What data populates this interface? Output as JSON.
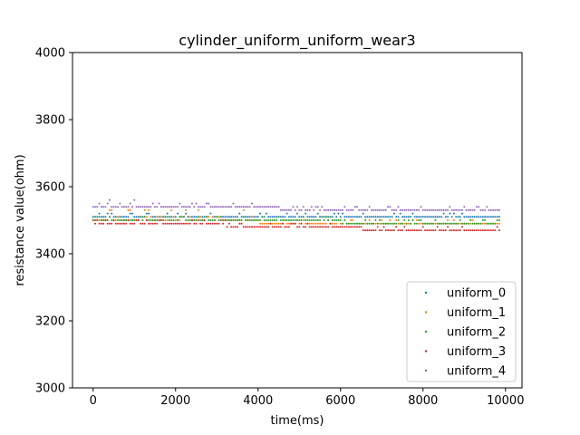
{
  "chart_data": {
    "type": "scatter",
    "title": "cylinder_uniform_uniform_wear3",
    "xlabel": "time(ms)",
    "ylabel": "resistance value(ohm)",
    "xlim": [
      -500,
      10400
    ],
    "ylim": [
      3000,
      4000
    ],
    "xticks": [
      0,
      2000,
      4000,
      6000,
      8000,
      10000
    ],
    "yticks": [
      3000,
      3200,
      3400,
      3600,
      3800,
      4000
    ],
    "grid": false,
    "legend_position": "lower right",
    "x_range": [
      0,
      9850
    ],
    "sample_step_ms": 50,
    "series": [
      {
        "name": "uniform_0",
        "color": "#1f77b4",
        "segments": [
          {
            "x_from": 0,
            "x_to": 9850,
            "values": [
              3510,
              3520
            ]
          }
        ]
      },
      {
        "name": "uniform_1",
        "color": "#ff7f0e",
        "segments": [
          {
            "x_from": 0,
            "x_to": 4000,
            "values": [
              3500,
              3510,
              3530
            ]
          },
          {
            "x_from": 4000,
            "x_to": 9850,
            "values": [
              3490,
              3500
            ]
          }
        ]
      },
      {
        "name": "uniform_2",
        "color": "#2ca02c",
        "segments": [
          {
            "x_from": 0,
            "x_to": 6000,
            "values": [
              3500,
              3510
            ]
          },
          {
            "x_from": 6000,
            "x_to": 9850,
            "values": [
              3490,
              3500
            ]
          }
        ]
      },
      {
        "name": "uniform_3",
        "color": "#d62728",
        "segments": [
          {
            "x_from": 0,
            "x_to": 3200,
            "values": [
              3490,
              3500
            ]
          },
          {
            "x_from": 3200,
            "x_to": 6500,
            "values": [
              3480,
              3490
            ]
          },
          {
            "x_from": 6500,
            "x_to": 9850,
            "values": [
              3470,
              3480
            ]
          }
        ]
      },
      {
        "name": "uniform_4",
        "color": "#9467bd",
        "segments": [
          {
            "x_from": 0,
            "x_to": 1000,
            "values": [
              3540,
              3550,
              3560
            ]
          },
          {
            "x_from": 1000,
            "x_to": 4500,
            "values": [
              3540,
              3550
            ]
          },
          {
            "x_from": 4500,
            "x_to": 9850,
            "values": [
              3530,
              3540
            ]
          }
        ]
      }
    ]
  }
}
